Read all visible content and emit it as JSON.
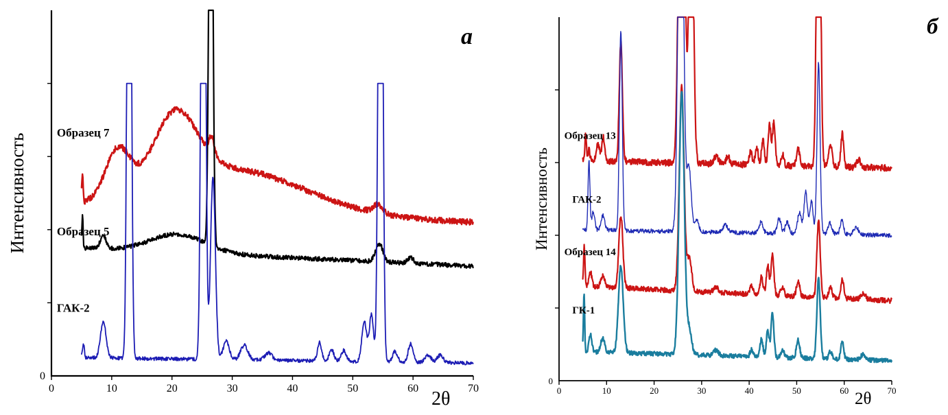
{
  "figure": {
    "background": "#ffffff",
    "description": "Two XRD diffractograms (intensity vs 2-theta)"
  },
  "chart_data": [
    {
      "type": "line",
      "panel_label": "a",
      "title": "",
      "xlabel": "2θ",
      "ylabel": "Интенсивность",
      "origin_label": "0",
      "xlim": [
        0,
        70
      ],
      "ylim": [
        0,
        1
      ],
      "xticks": [
        0,
        10,
        20,
        30,
        40,
        50,
        60,
        70
      ],
      "yticks_minor": [
        0.2,
        0.4,
        0.6,
        0.8
      ],
      "x_start": 5,
      "grid": false,
      "legend_position": "inline-left",
      "series": [
        {
          "name": "Образец 7",
          "color": "#cc1414",
          "width": 2.4,
          "noise": 0.008,
          "clip": 1.0,
          "baseline": [
            0.46,
            0.42
          ],
          "peaks": [
            [
              5.15,
              0.07,
              0.12
            ],
            [
              11,
              0.13,
              2.0
            ],
            [
              20.5,
              0.19,
              3.6
            ],
            [
              30,
              0.12,
              12
            ],
            [
              26.6,
              0.05,
              0.45
            ],
            [
              54.2,
              0.025,
              0.8
            ]
          ],
          "label": {
            "x": 0.9,
            "y": 0.655
          }
        },
        {
          "name": "Образец 5",
          "color": "#000000",
          "width": 2.2,
          "noise": 0.006,
          "clip": 1.0,
          "baseline": [
            0.35,
            0.3
          ],
          "peaks": [
            [
              5.15,
              0.09,
              0.1
            ],
            [
              8.6,
              0.035,
              0.5
            ],
            [
              21,
              0.05,
              4.5
            ],
            [
              26.45,
              1.5,
              0.3
            ],
            [
              54.4,
              0.05,
              0.6
            ],
            [
              59.6,
              0.015,
              0.5
            ]
          ],
          "label": {
            "x": 0.9,
            "y": 0.385
          }
        },
        {
          "name": "ГАК-2",
          "color": "#1c1cb4",
          "width": 1.8,
          "noise": 0.005,
          "clip": 0.8,
          "baseline": [
            0.05,
            0.035
          ],
          "peaks": [
            [
              5.3,
              0.04,
              0.15
            ],
            [
              8.6,
              0.1,
              0.45
            ],
            [
              12.9,
              2.2,
              0.3
            ],
            [
              25.2,
              2.2,
              0.32
            ],
            [
              26.8,
              0.5,
              0.4
            ],
            [
              29,
              0.05,
              0.5
            ],
            [
              32,
              0.04,
              0.6
            ],
            [
              36,
              0.02,
              0.6
            ],
            [
              44.5,
              0.05,
              0.35
            ],
            [
              46.5,
              0.03,
              0.4
            ],
            [
              48.5,
              0.03,
              0.4
            ],
            [
              51.9,
              0.11,
              0.4
            ],
            [
              53.1,
              0.13,
              0.35
            ],
            [
              54.6,
              2.2,
              0.32
            ],
            [
              57,
              0.03,
              0.4
            ],
            [
              59.6,
              0.05,
              0.4
            ],
            [
              62.5,
              0.02,
              0.5
            ],
            [
              64.5,
              0.02,
              0.5
            ]
          ],
          "label": {
            "x": 0.9,
            "y": 0.175
          }
        }
      ]
    },
    {
      "type": "line",
      "panel_label": "б",
      "title": "",
      "xlabel": "2θ",
      "ylabel": "Интенсивность",
      "origin_label": "0",
      "xlim": [
        0,
        70
      ],
      "ylim": [
        0,
        1
      ],
      "xticks": [
        0,
        10,
        20,
        30,
        40,
        50,
        60,
        70
      ],
      "yticks_minor": [
        0.2,
        0.4,
        0.6,
        0.8
      ],
      "x_start": 5,
      "grid": false,
      "legend_position": "inline-left",
      "series": [
        {
          "name": "Образец 13",
          "color": "#cc1414",
          "width": 2.2,
          "noise": 0.009,
          "clip": 1.0,
          "baseline": [
            0.605,
            0.585
          ],
          "peaks": [
            [
              5.6,
              0.07,
              0.15
            ],
            [
              6.3,
              0.03,
              0.2
            ],
            [
              8.2,
              0.045,
              0.35
            ],
            [
              9.3,
              0.065,
              0.3
            ],
            [
              13,
              0.33,
              0.33
            ],
            [
              25.8,
              1.4,
              0.55
            ],
            [
              27.8,
              0.9,
              0.45
            ],
            [
              33,
              0.02,
              0.5
            ],
            [
              35.5,
              0.02,
              0.4
            ],
            [
              40.3,
              0.035,
              0.3
            ],
            [
              41.6,
              0.05,
              0.3
            ],
            [
              42.9,
              0.07,
              0.3
            ],
            [
              44.3,
              0.11,
              0.3
            ],
            [
              45.2,
              0.12,
              0.28
            ],
            [
              47,
              0.03,
              0.3
            ],
            [
              50.3,
              0.045,
              0.35
            ],
            [
              54.6,
              1.2,
              0.38
            ],
            [
              57.1,
              0.06,
              0.35
            ],
            [
              59.6,
              0.09,
              0.3
            ],
            [
              63,
              0.02,
              0.4
            ]
          ],
          "label": {
            "x": 1.1,
            "y": 0.665
          }
        },
        {
          "name": "ГАК-2",
          "color": "#1e2ab4",
          "width": 1.4,
          "noise": 0.006,
          "clip": 1.0,
          "baseline": [
            0.415,
            0.4
          ],
          "peaks": [
            [
              6.3,
              0.19,
              0.2
            ],
            [
              7.2,
              0.05,
              0.3
            ],
            [
              9.2,
              0.04,
              0.4
            ],
            [
              13,
              0.55,
              0.3
            ],
            [
              25.6,
              1.4,
              0.5
            ],
            [
              27.3,
              0.18,
              0.5
            ],
            [
              29,
              0.03,
              0.4
            ],
            [
              35,
              0.02,
              0.5
            ],
            [
              42.5,
              0.03,
              0.4
            ],
            [
              46.3,
              0.04,
              0.4
            ],
            [
              48,
              0.03,
              0.4
            ],
            [
              50.6,
              0.06,
              0.4
            ],
            [
              51.9,
              0.115,
              0.35
            ],
            [
              53.1,
              0.09,
              0.35
            ],
            [
              54.6,
              0.47,
              0.32
            ],
            [
              57,
              0.03,
              0.4
            ],
            [
              59.5,
              0.04,
              0.35
            ],
            [
              62.5,
              0.02,
              0.5
            ]
          ],
          "label": {
            "x": 2.8,
            "y": 0.49
          }
        },
        {
          "name": "Образец 14",
          "color": "#cc1414",
          "width": 2.2,
          "noise": 0.007,
          "clip": 1.0,
          "baseline": [
            0.26,
            0.22
          ],
          "peaks": [
            [
              5.3,
              0.11,
              0.15
            ],
            [
              6.6,
              0.04,
              0.3
            ],
            [
              9.2,
              0.03,
              0.4
            ],
            [
              13,
              0.2,
              0.42
            ],
            [
              25.8,
              0.56,
              0.5
            ],
            [
              27.4,
              0.09,
              0.5
            ],
            [
              33,
              0.015,
              0.5
            ],
            [
              40.5,
              0.025,
              0.3
            ],
            [
              42.6,
              0.05,
              0.3
            ],
            [
              43.9,
              0.08,
              0.3
            ],
            [
              44.9,
              0.115,
              0.3
            ],
            [
              47,
              0.025,
              0.35
            ],
            [
              50.3,
              0.04,
              0.35
            ],
            [
              54.6,
              0.21,
              0.35
            ],
            [
              57.1,
              0.03,
              0.35
            ],
            [
              59.6,
              0.055,
              0.3
            ],
            [
              64,
              0.015,
              0.5
            ]
          ],
          "label": {
            "x": 1.1,
            "y": 0.345
          }
        },
        {
          "name": "ГК-1",
          "color": "#1a7d9e",
          "width": 2.4,
          "noise": 0.006,
          "clip": 1.0,
          "baseline": [
            0.08,
            0.055
          ],
          "peaks": [
            [
              5.25,
              0.16,
              0.13
            ],
            [
              6.6,
              0.05,
              0.3
            ],
            [
              9.2,
              0.04,
              0.4
            ],
            [
              13,
              0.24,
              0.5
            ],
            [
              25.8,
              0.72,
              0.55
            ],
            [
              27.4,
              0.07,
              0.5
            ],
            [
              33,
              0.015,
              0.5
            ],
            [
              40.5,
              0.02,
              0.3
            ],
            [
              42.6,
              0.05,
              0.3
            ],
            [
              43.9,
              0.07,
              0.3
            ],
            [
              44.9,
              0.12,
              0.3
            ],
            [
              47,
              0.02,
              0.35
            ],
            [
              50.3,
              0.05,
              0.35
            ],
            [
              54.6,
              0.22,
              0.35
            ],
            [
              57.1,
              0.02,
              0.35
            ],
            [
              59.6,
              0.05,
              0.3
            ],
            [
              64,
              0.015,
              0.5
            ]
          ],
          "label": {
            "x": 2.8,
            "y": 0.185
          }
        }
      ]
    }
  ]
}
